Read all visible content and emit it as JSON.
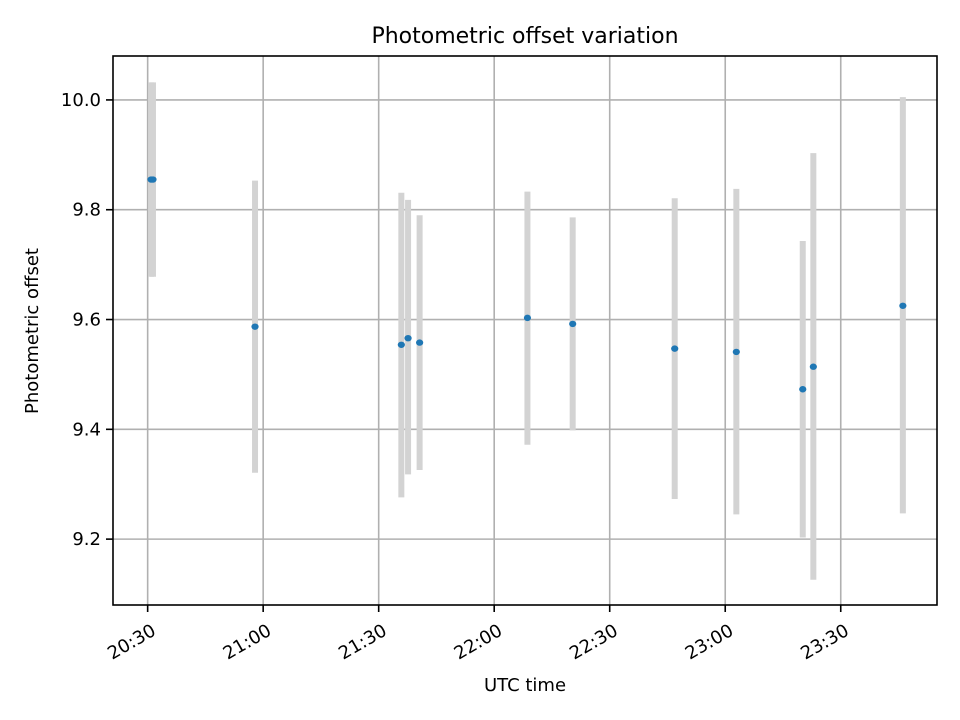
{
  "chart_data": {
    "type": "scatter",
    "title": "Photometric offset variation",
    "xlabel": "UTC time",
    "ylabel": "Photometric offset",
    "x_ticks": [
      "20:30",
      "21:00",
      "21:30",
      "22:00",
      "22:30",
      "23:00",
      "23:30"
    ],
    "y_ticks": [
      "9.2",
      "9.4",
      "9.6",
      "9.8",
      "10.0"
    ],
    "xlim": [
      "20:21",
      "23:55"
    ],
    "ylim": [
      9.08,
      10.08
    ],
    "grid": true,
    "series": [
      {
        "marker_color": "#1f77b4",
        "errorbar_color": "#d3d3d3",
        "points": [
          {
            "x": "20:30:53",
            "y": 9.855,
            "ylow": 9.678,
            "yhigh": 10.032
          },
          {
            "x": "20:31:23",
            "y": 9.855,
            "ylow": 9.678,
            "yhigh": 10.032
          },
          {
            "x": "20:57:53",
            "y": 9.587,
            "ylow": 9.321,
            "yhigh": 9.853
          },
          {
            "x": "21:35:53",
            "y": 9.554,
            "ylow": 9.276,
            "yhigh": 9.831
          },
          {
            "x": "21:37:38",
            "y": 9.566,
            "ylow": 9.318,
            "yhigh": 9.818
          },
          {
            "x": "21:40:38",
            "y": 9.558,
            "ylow": 9.326,
            "yhigh": 9.79
          },
          {
            "x": "22:08:38",
            "y": 9.603,
            "ylow": 9.372,
            "yhigh": 9.833
          },
          {
            "x": "22:20:23",
            "y": 9.592,
            "ylow": 9.398,
            "yhigh": 9.786
          },
          {
            "x": "22:46:53",
            "y": 9.547,
            "ylow": 9.273,
            "yhigh": 9.821
          },
          {
            "x": "23:02:53",
            "y": 9.541,
            "ylow": 9.245,
            "yhigh": 9.838
          },
          {
            "x": "23:20:08",
            "y": 9.473,
            "ylow": 9.203,
            "yhigh": 9.743
          },
          {
            "x": "23:22:53",
            "y": 9.514,
            "ylow": 9.126,
            "yhigh": 9.903
          },
          {
            "x": "23:46:08",
            "y": 9.625,
            "ylow": 9.247,
            "yhigh": 10.005
          }
        ]
      }
    ]
  }
}
